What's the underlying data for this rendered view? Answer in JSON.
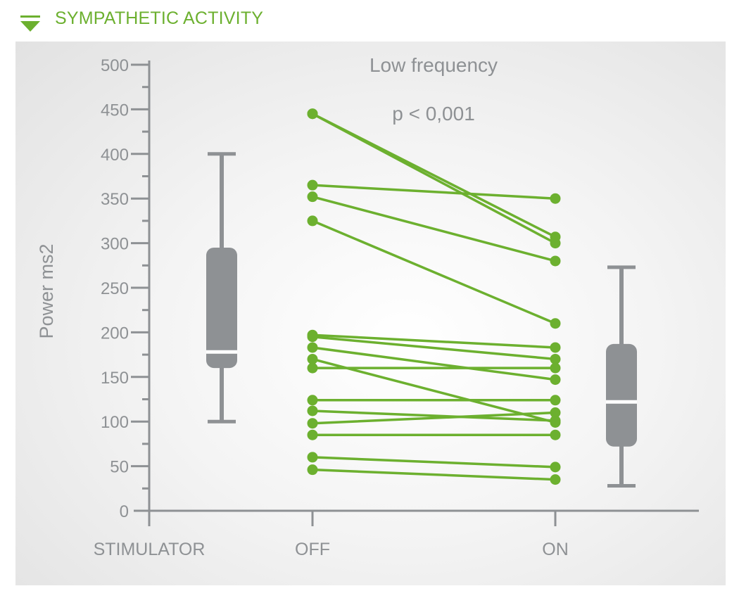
{
  "header": {
    "title": "SYMPATHETIC ACTIVITY",
    "icon": "triangle-down-icon",
    "accent_color": "#6cb02f"
  },
  "chart_data": {
    "type": "line",
    "title": "Low frequency",
    "annotation": "p < 0,001",
    "ylabel": "Power ms2",
    "xlabel": "STIMULATOR",
    "categories": [
      "OFF",
      "ON"
    ],
    "ylim": [
      0,
      500
    ],
    "y_ticks": [
      0,
      50,
      100,
      150,
      200,
      250,
      300,
      350,
      400,
      450,
      500
    ],
    "line_color": "#6cb02f",
    "box_color": "#8e9194",
    "pairs": [
      [
        445,
        300
      ],
      [
        445,
        307
      ],
      [
        365,
        350
      ],
      [
        352,
        280
      ],
      [
        325,
        210
      ],
      [
        197,
        183
      ],
      [
        195,
        170
      ],
      [
        183,
        147
      ],
      [
        170,
        99
      ],
      [
        160,
        160
      ],
      [
        124,
        124
      ],
      [
        112,
        101
      ],
      [
        98,
        110
      ],
      [
        85,
        85
      ],
      [
        60,
        49
      ],
      [
        46,
        35
      ]
    ],
    "boxplots": [
      {
        "group": "OFF",
        "whisker_low": 100,
        "q1": 160,
        "median": 178,
        "q3": 295,
        "whisker_high": 400
      },
      {
        "group": "ON",
        "whisker_low": 28,
        "q1": 72,
        "median": 122,
        "q3": 187,
        "whisker_high": 273
      }
    ]
  }
}
